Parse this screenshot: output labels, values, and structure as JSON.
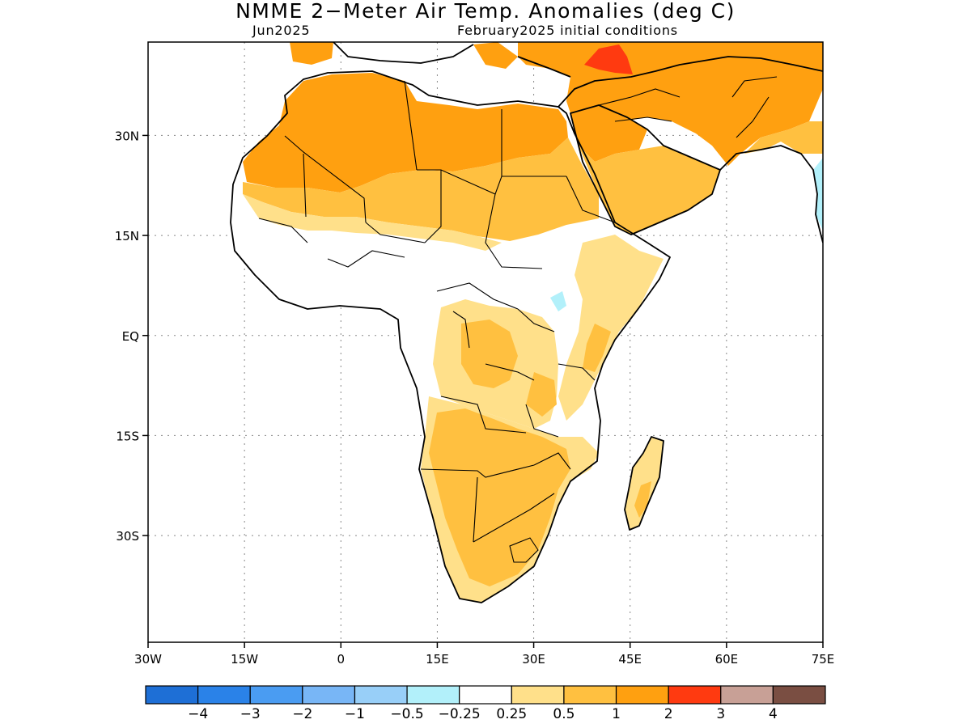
{
  "figure": {
    "title": "NMME 2−Meter Air Temp. Anomalies (deg C)",
    "valid_month": "Jun2025",
    "initial_conditions": "February2025 initial conditions"
  },
  "map": {
    "projection": "lat-lon",
    "lon_range": [
      -30,
      75
    ],
    "lat_range": [
      -46,
      44
    ],
    "lat_ticks": [
      {
        "value": 30,
        "label": "30N"
      },
      {
        "value": 15,
        "label": "15N"
      },
      {
        "value": 0,
        "label": "EQ"
      },
      {
        "value": -15,
        "label": "15S"
      },
      {
        "value": -30,
        "label": "30S"
      }
    ],
    "lon_ticks": [
      {
        "value": -30,
        "label": "30W"
      },
      {
        "value": -15,
        "label": "15W"
      },
      {
        "value": 0,
        "label": "0"
      },
      {
        "value": 15,
        "label": "15E"
      },
      {
        "value": 30,
        "label": "30E"
      },
      {
        "value": 45,
        "label": "45E"
      },
      {
        "value": 60,
        "label": "60E"
      },
      {
        "value": 75,
        "label": "75E"
      }
    ],
    "grid": "dotted",
    "anomaly_regions": [
      {
        "region": "Sahara / North Africa",
        "range_degC": "1 to 2"
      },
      {
        "region": "Sahel band",
        "range_degC": "0.5 to 1"
      },
      {
        "region": "Arabian Peninsula / Middle East",
        "range_degC": "1 to 2"
      },
      {
        "region": "Eastern Mediterranean / Turkey",
        "range_degC": "2 to 3"
      },
      {
        "region": "Southern Africa",
        "range_degC": "0.5 to 1"
      },
      {
        "region": "Central & East Africa",
        "range_degC": "0.25 to 1"
      },
      {
        "region": "Madagascar",
        "range_degC": "0.25 to 1"
      },
      {
        "region": "Lake Victoria area",
        "range_degC": "-0.5 to -0.25"
      },
      {
        "region": "West Africa coast / Gulf of Guinea",
        "range_degC": "-0.25 to 0.25"
      }
    ]
  },
  "colorbar": {
    "colors": [
      "#1e6fd6",
      "#2a82e8",
      "#4a9cf2",
      "#78b6f6",
      "#98cff8",
      "#b2f0fa",
      "#ffffff",
      "#ffe08a",
      "#ffc040",
      "#ffa010",
      "#ff3a10",
      "#c8a096",
      "#7a4e42"
    ],
    "labels": [
      "−4",
      "−3",
      "−2",
      "−1",
      "−0.5",
      "−0.25",
      "0.25",
      "0.5",
      "1",
      "2",
      "3",
      "4"
    ]
  }
}
